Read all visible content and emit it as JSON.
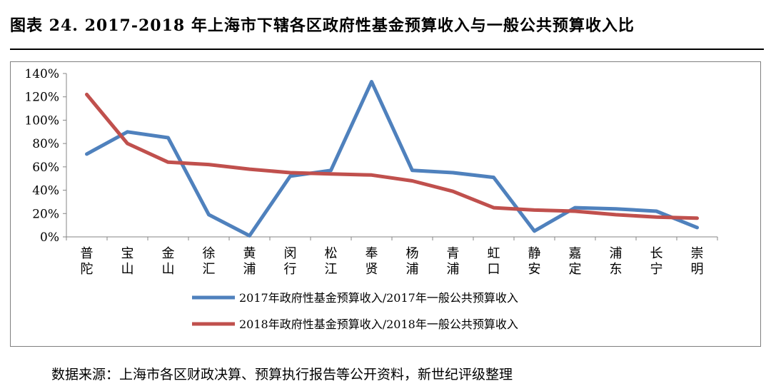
{
  "title": "图表 24. 2017-2018 年上海市下辖各区政府性基金预算收入与一般公共预算收入比",
  "source": "数据来源：上海市各区财政决算、预算执行报告等公开资料，新世纪评级整理",
  "colors": {
    "series_2017": "#4f81bd",
    "series_2018": "#c0504d"
  },
  "chart_data": {
    "type": "line",
    "title": "",
    "xlabel": "",
    "ylabel": "",
    "categories": [
      "普陀",
      "宝山",
      "金山",
      "徐汇",
      "黄浦",
      "闵行",
      "松江",
      "奉贤",
      "杨浦",
      "青浦",
      "虹口",
      "静安",
      "嘉定",
      "浦东",
      "长宁",
      "崇明"
    ],
    "series": [
      {
        "name": "2017年政府性基金预算收入/2017年一般公共预算收入",
        "values": [
          71,
          90,
          85,
          19,
          1,
          52,
          57,
          133,
          57,
          55,
          51,
          5,
          25,
          24,
          22,
          8
        ]
      },
      {
        "name": "2018年政府性基金预算收入/2018年一般公共预算收入",
        "values": [
          122,
          80,
          64,
          62,
          58,
          55,
          54,
          53,
          48,
          39,
          25,
          23,
          22,
          19,
          17,
          16
        ]
      }
    ],
    "yticks": [
      "0%",
      "20%",
      "40%",
      "60%",
      "80%",
      "100%",
      "120%",
      "140%"
    ],
    "ylim": [
      0,
      140
    ],
    "legend_position": "bottom",
    "grid": false
  }
}
